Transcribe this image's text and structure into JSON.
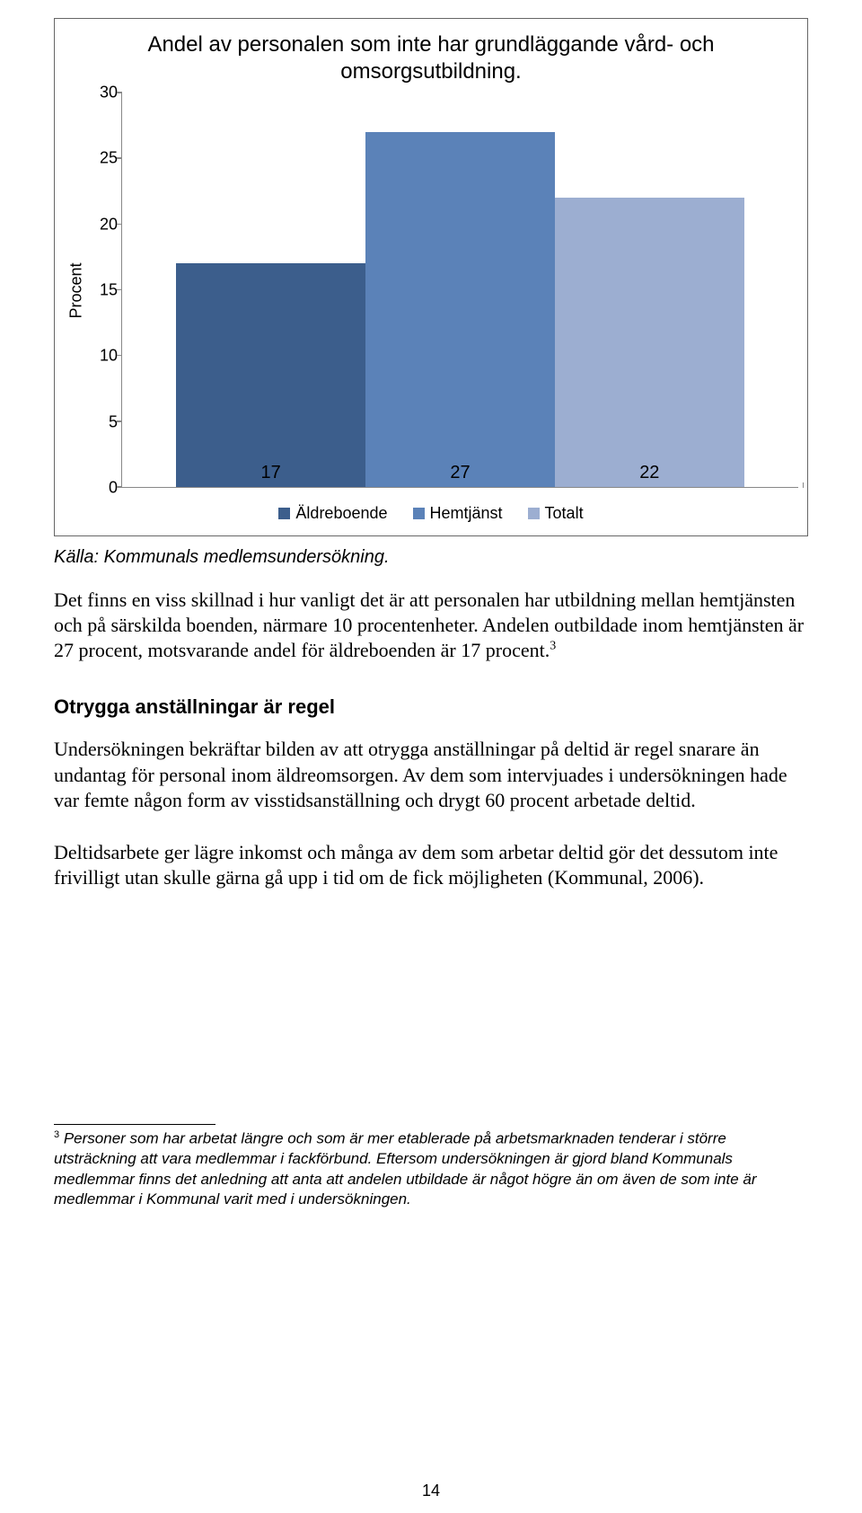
{
  "chart": {
    "type": "bar",
    "title": "Andel av personalen som inte har grundläggande vård- och omsorgsutbildning.",
    "ylabel": "Procent",
    "ylabel_fontsize": 18,
    "title_fontsize": 24,
    "ylim": [
      0,
      30
    ],
    "ytick_step": 5,
    "yticks": [
      0,
      5,
      10,
      15,
      20,
      25,
      30
    ],
    "axis_color": "#888888",
    "background_color": "#ffffff",
    "bar_width_pct": 28,
    "bar_gap_pct": 0,
    "bars": [
      {
        "label": "Äldreboende",
        "value": 17,
        "color": "#3c5e8c"
      },
      {
        "label": "Hemtjänst",
        "value": 27,
        "color": "#5b82b8"
      },
      {
        "label": "Totalt",
        "value": 22,
        "color": "#9caed1"
      }
    ],
    "legend_fontsize": 18,
    "value_label_fontsize": 20,
    "value_label_color": "#000000"
  },
  "source": "Källa: Kommunals medlemsundersökning.",
  "paragraphs": {
    "p1": "Det finns en viss skillnad i hur vanligt det är att personalen har utbildning mellan hemtjänsten och på särskilda boenden, närmare 10 procentenheter. Andelen outbildade inom hemtjänsten är 27 procent, motsvarande andel för äldreboenden är 17 procent.",
    "p1_sup": "3",
    "heading": "Otrygga anställningar är regel",
    "p2": "Undersökningen bekräftar bilden av att otrygga anställningar på deltid är regel snarare än undantag för personal inom äldreomsorgen. Av dem som intervjuades i undersökningen hade var femte någon form av visstidsanställning och drygt 60 procent arbetade deltid.",
    "p3": "Deltidsarbete ger lägre inkomst och många av dem som arbetar deltid gör det dessutom inte frivilligt utan skulle gärna gå upp i tid om de fick möjligheten (Kommunal, 2006)."
  },
  "footnote": {
    "num": "3",
    "text": " Personer som har arbetat längre och som är mer etablerade på arbetsmarknaden tenderar i större utsträckning att vara medlemmar i fackförbund. Eftersom undersökningen är gjord bland Kommunals medlemmar finns det anledning att anta att andelen utbildade är något högre än om även de som inte är medlemmar i Kommunal varit med i undersökningen."
  },
  "page_number": "14"
}
